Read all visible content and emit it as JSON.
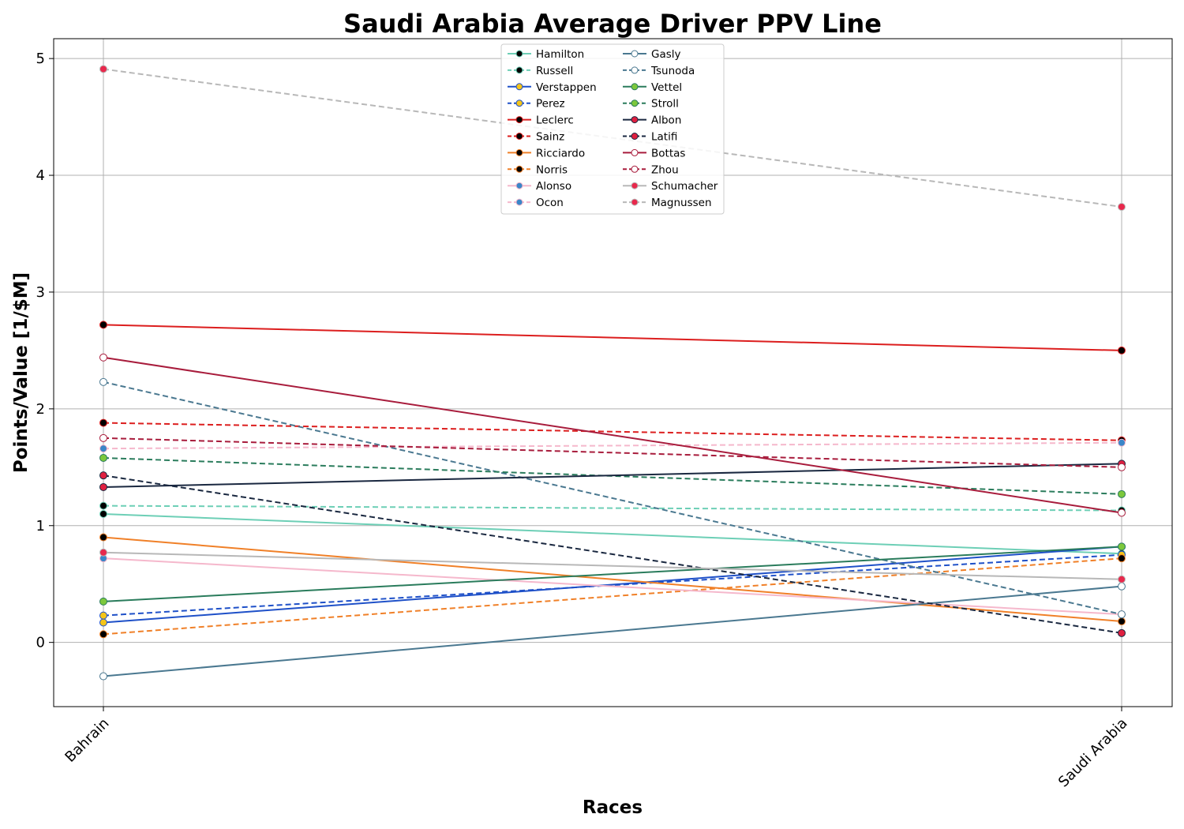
{
  "chart_data": {
    "type": "line",
    "title": "Saudi Arabia Average Driver PPV Line",
    "xlabel": "Races",
    "ylabel": "Points/Value [1/$M]",
    "categories": [
      "Bahrain",
      "Saudi Arabia"
    ],
    "ylim": [
      -0.55,
      5.17
    ],
    "yticks": [
      0,
      1,
      2,
      3,
      4,
      5
    ],
    "grid": true,
    "legend_position": "top-center",
    "legend_columns": 2,
    "series": [
      {
        "name": "Hamilton",
        "values": [
          1.1,
          0.76
        ],
        "color": "#6dcfb6",
        "dash": "solid",
        "marker": "#000000",
        "markerEdge": "#6dcfb6"
      },
      {
        "name": "Russell",
        "values": [
          1.17,
          1.13
        ],
        "color": "#6dcfb6",
        "dash": "dashed",
        "marker": "#000000",
        "markerEdge": "#6dcfb6"
      },
      {
        "name": "Verstappen",
        "values": [
          0.17,
          0.82
        ],
        "color": "#1e50c8",
        "dash": "solid",
        "marker": "#f5c518",
        "markerEdge": "#1e50c8"
      },
      {
        "name": "Perez",
        "values": [
          0.23,
          0.75
        ],
        "color": "#1e50c8",
        "dash": "dashed",
        "marker": "#f5c518",
        "markerEdge": "#1e50c8"
      },
      {
        "name": "Leclerc",
        "values": [
          2.72,
          2.5
        ],
        "color": "#dc1e1e",
        "dash": "solid",
        "marker": "#000000",
        "markerEdge": "#dc1e1e"
      },
      {
        "name": "Sainz",
        "values": [
          1.88,
          1.73
        ],
        "color": "#dc1e1e",
        "dash": "dashed",
        "marker": "#000000",
        "markerEdge": "#dc1e1e"
      },
      {
        "name": "Ricciardo",
        "values": [
          0.9,
          0.18
        ],
        "color": "#f08028",
        "dash": "solid",
        "marker": "#000000",
        "markerEdge": "#f08028"
      },
      {
        "name": "Norris",
        "values": [
          0.07,
          0.72
        ],
        "color": "#f08028",
        "dash": "dashed",
        "marker": "#000000",
        "markerEdge": "#f08028"
      },
      {
        "name": "Alonso",
        "values": [
          0.72,
          0.24
        ],
        "color": "#f5b8cc",
        "dash": "solid",
        "marker": "#3a86c8",
        "markerEdge": "#f5b8cc"
      },
      {
        "name": "Ocon",
        "values": [
          1.66,
          1.71
        ],
        "color": "#f5b8cc",
        "dash": "dashed",
        "marker": "#3a86c8",
        "markerEdge": "#f5b8cc"
      },
      {
        "name": "Gasly",
        "values": [
          -0.29,
          0.48
        ],
        "color": "#4a7890",
        "dash": "solid",
        "marker": "#ffffff",
        "markerEdge": "#4a7890"
      },
      {
        "name": "Tsunoda",
        "values": [
          2.23,
          0.24
        ],
        "color": "#4a7890",
        "dash": "dashed",
        "marker": "#ffffff",
        "markerEdge": "#4a7890"
      },
      {
        "name": "Vettel",
        "values": [
          0.35,
          0.82
        ],
        "color": "#2a7c5c",
        "dash": "solid",
        "marker": "#7cc83c",
        "markerEdge": "#2a7c5c"
      },
      {
        "name": "Stroll",
        "values": [
          1.58,
          1.27
        ],
        "color": "#2a7c5c",
        "dash": "dashed",
        "marker": "#7cc83c",
        "markerEdge": "#2a7c5c"
      },
      {
        "name": "Albon",
        "values": [
          1.33,
          1.53
        ],
        "color": "#1a2840",
        "dash": "solid",
        "marker": "#e02040",
        "markerEdge": "#1a2840"
      },
      {
        "name": "Latifi",
        "values": [
          1.43,
          0.08
        ],
        "color": "#1a2840",
        "dash": "dashed",
        "marker": "#e02040",
        "markerEdge": "#1a2840"
      },
      {
        "name": "Bottas",
        "values": [
          2.44,
          1.11
        ],
        "color": "#a81c3c",
        "dash": "solid",
        "marker": "#ffffff",
        "markerEdge": "#a81c3c"
      },
      {
        "name": "Zhou",
        "values": [
          1.75,
          1.5
        ],
        "color": "#a81c3c",
        "dash": "dashed",
        "marker": "#ffffff",
        "markerEdge": "#a81c3c"
      },
      {
        "name": "Schumacher",
        "values": [
          0.77,
          0.54
        ],
        "color": "#b8b8b8",
        "dash": "solid",
        "marker": "#e8284c",
        "markerEdge": "#b8b8b8"
      },
      {
        "name": "Magnussen",
        "values": [
          4.91,
          3.73
        ],
        "color": "#b8b8b8",
        "dash": "dashed",
        "marker": "#e8284c",
        "markerEdge": "#b8b8b8"
      }
    ]
  }
}
